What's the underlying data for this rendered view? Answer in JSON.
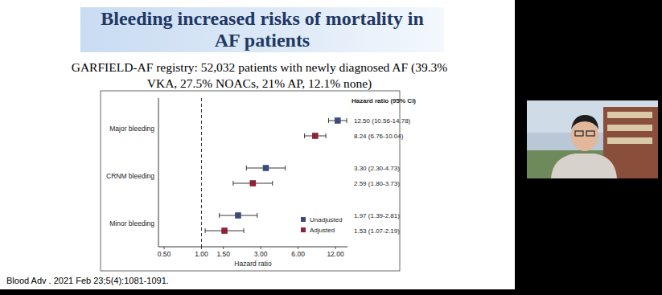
{
  "chart_data": {
    "type": "forest",
    "title": "Bleeding increased risks of mortality in AF patients",
    "subtitle": "GARFIELD-AF registry: 52,032 patients with newly diagnosed AF (39.3% VKA, 27.5% NOACs, 21% AP, 12.1% none)",
    "x_label": "Hazard ratio",
    "orientation": "horizontal",
    "categories": [
      "Major bleeding",
      "CRNM bleeding",
      "Minor bleeding"
    ],
    "series": [
      {
        "name": "Unadjusted",
        "color": "#3e4a7c",
        "marker": "square",
        "values": [
          12.5,
          3.3,
          1.97
        ],
        "ci_low": [
          10.56,
          2.3,
          1.39
        ],
        "ci_high": [
          14.78,
          4.73,
          2.81
        ],
        "value_labels": [
          "12.50 (10.56-14.78)",
          "3.30 (2.30-4.73)",
          "1.97 (1.39-2.81)"
        ]
      },
      {
        "name": "Adjusted",
        "color": "#8e2237",
        "marker": "square",
        "values": [
          8.24,
          2.59,
          1.53
        ],
        "ci_low": [
          6.76,
          1.8,
          1.07
        ],
        "ci_high": [
          10.04,
          3.73,
          2.19
        ],
        "value_labels": [
          "8.24 (6.76-10.04)",
          "2.59 (1.80-3.73)",
          "1.53 (1.07-2.19)"
        ]
      }
    ],
    "xlim": [
      0.45,
      15
    ],
    "xticks": [
      {
        "value": 0.5,
        "label": "0.50"
      },
      {
        "value": 1,
        "label": "1.00"
      },
      {
        "value": 1.5,
        "label": "1.50"
      },
      {
        "value": 3,
        "label": "3.00"
      },
      {
        "value": 6,
        "label": "6.00"
      },
      {
        "value": 12,
        "label": "12.00"
      }
    ],
    "log": "x",
    "reference_line": 1,
    "grid": false,
    "legend": "lower right",
    "data_labels": true,
    "annotations": [
      "Hazard ratio (95% CI)",
      "Blood Adv . 2021 Feb 23;5(4):1081-1091."
    ]
  }
}
